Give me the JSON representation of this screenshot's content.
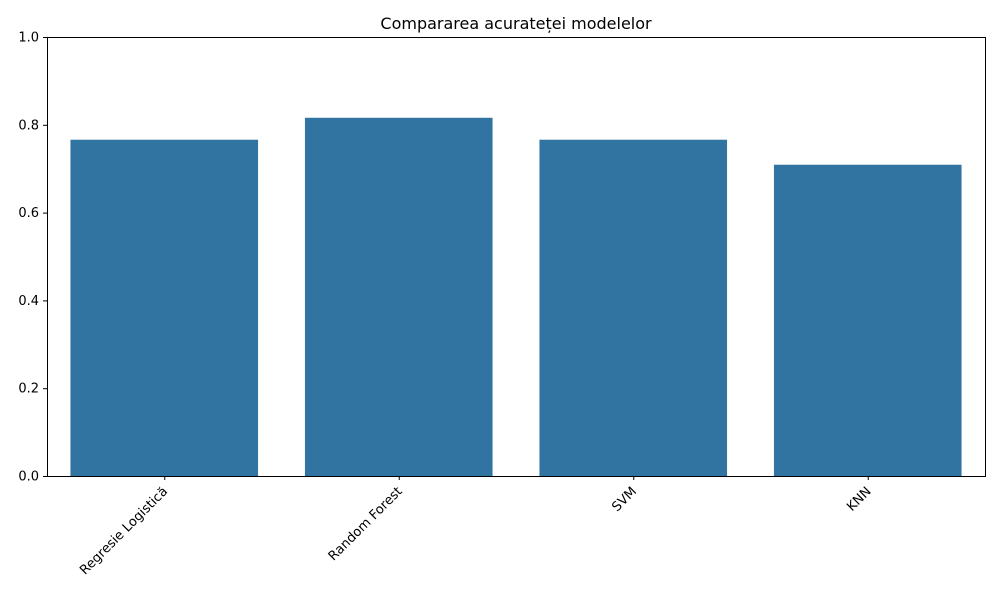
{
  "chart_data": {
    "type": "bar",
    "title": "Compararea acurateței modelelor",
    "xlabel": "",
    "ylabel": "",
    "categories": [
      "Regresie Logistică",
      "Random Forest",
      "SVM",
      "KNN"
    ],
    "values": [
      0.766,
      0.816,
      0.766,
      0.709
    ],
    "ylim": [
      0,
      1.0
    ],
    "yticks": [
      "0.0",
      "0.2",
      "0.4",
      "0.6",
      "0.8",
      "1.0"
    ],
    "bar_color": "#3274a1",
    "grid": false,
    "x_tick_rotation": "45deg"
  }
}
